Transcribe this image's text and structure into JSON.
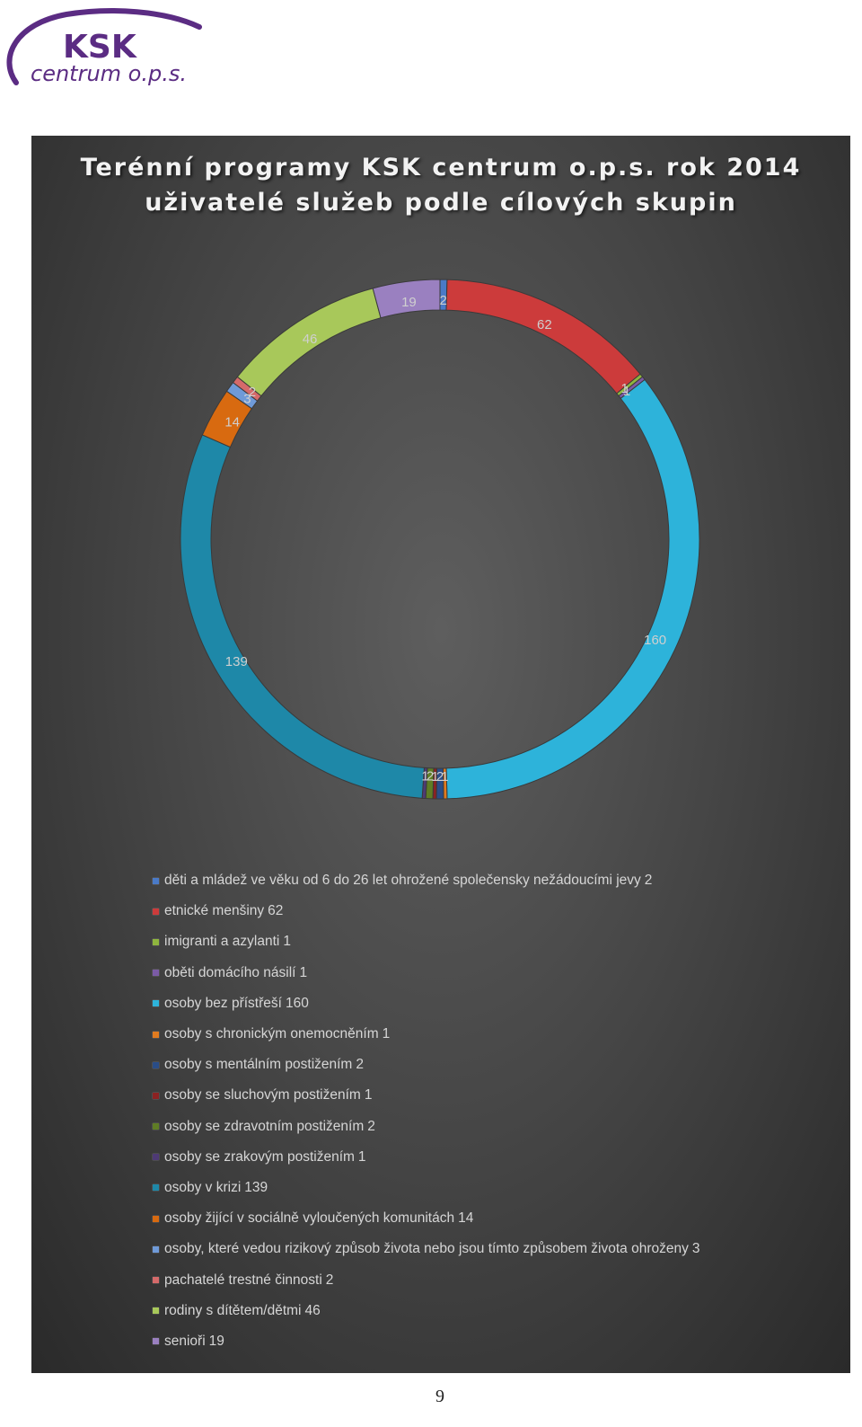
{
  "logo": {
    "brand": "KSK",
    "sub": "centrum o.p.s."
  },
  "page_number": "9",
  "chart_data": {
    "type": "pie",
    "variant": "donut",
    "title": [
      "Terénní programy KSK centrum o.p.s. rok 2014",
      "uživatelé služeb podle cílových skupin"
    ],
    "legend_position": "bottom",
    "slices": [
      {
        "label": "děti a mládež ve věku od 6 do 26 let ohrožené společensky nežádoucími jevy",
        "value": 2,
        "color": "#4a7ac7"
      },
      {
        "label": "etnické menšiny",
        "value": 62,
        "color": "#cc3b3b"
      },
      {
        "label": "imigranti a azylanti",
        "value": 1,
        "color": "#8fb53e"
      },
      {
        "label": "oběti domácího násilí",
        "value": 1,
        "color": "#7b5ba6"
      },
      {
        "label": "osoby bez přístřeší",
        "value": 160,
        "color": "#2db3da"
      },
      {
        "label": "osoby s chronickým onemocněním",
        "value": 1,
        "color": "#e07b1f"
      },
      {
        "label": "osoby s mentálním postižením",
        "value": 2,
        "color": "#2a4d87"
      },
      {
        "label": "osoby se sluchovým postižením",
        "value": 1,
        "color": "#8c2222"
      },
      {
        "label": "osoby se zdravotním postižením",
        "value": 2,
        "color": "#5f7d25"
      },
      {
        "label": "osoby se zrakovým postižením",
        "value": 1,
        "color": "#4e3a75"
      },
      {
        "label": "osoby v krizi",
        "value": 139,
        "color": "#1e88a8"
      },
      {
        "label": "osoby žijící v sociálně vyloučených komunitách",
        "value": 14,
        "color": "#d86a10"
      },
      {
        "label": "osoby, které vedou rizikový způsob života nebo jsou tímto způsobem života ohroženy",
        "value": 3,
        "color": "#6f9ad8"
      },
      {
        "label": "pachatelé trestné činnosti",
        "value": 2,
        "color": "#d56a6a"
      },
      {
        "label": "rodiny s dítětem/dětmi",
        "value": 46,
        "color": "#a8c85a"
      },
      {
        "label": "senioři",
        "value": 19,
        "color": "#9a80c0"
      }
    ]
  }
}
